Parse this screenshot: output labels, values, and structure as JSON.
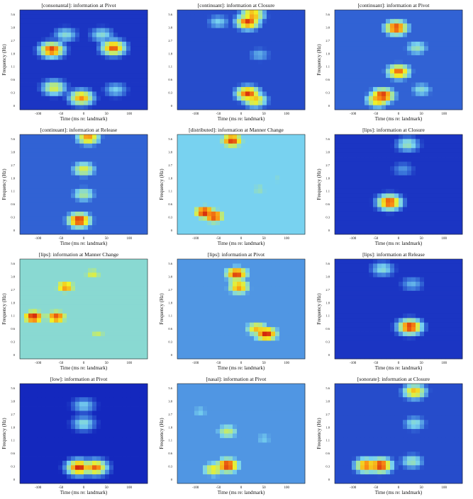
{
  "chart_data": [
    {
      "type": "heatmap",
      "title": "[consonantal]: information at Pivot",
      "xlabel": "Time (ms re: landmark)",
      "ylabel": "Frequency (Hz)",
      "xticks": [
        "-100",
        "-50",
        "0",
        "50",
        "100"
      ],
      "yticks": [
        "0",
        "0.3",
        "0.6",
        "1.1",
        "1.8",
        "2.7",
        "3.8",
        "5.6"
      ],
      "xlim": [
        -140,
        140
      ],
      "ylim": [
        0,
        6.5
      ],
      "background": 0.15,
      "blobs": [
        {
          "x": -70,
          "y": 0.6,
          "intensity": 0.95
        },
        {
          "x": 65,
          "y": 0.62,
          "intensity": 0.92
        },
        {
          "x": -65,
          "y": 0.22,
          "intensity": 0.7
        },
        {
          "x": -5,
          "y": 0.12,
          "intensity": 0.85
        },
        {
          "x": 70,
          "y": 0.2,
          "intensity": 0.45
        },
        {
          "x": -40,
          "y": 0.75,
          "intensity": 0.5
        },
        {
          "x": 40,
          "y": 0.75,
          "intensity": 0.5
        }
      ]
    },
    {
      "type": "heatmap",
      "title": "[continuant]: information at Closure",
      "xlabel": "Time (ms re: landmark)",
      "ylabel": "",
      "xticks": [
        "-100",
        "-50",
        "0",
        "50",
        "100"
      ],
      "yticks": [
        "0",
        "0.3",
        "0.6",
        "1.1",
        "1.8",
        "2.7",
        "3.8",
        "5.6"
      ],
      "xlim": [
        -140,
        140
      ],
      "ylim": [
        0,
        6.5
      ],
      "background": 0.2,
      "blobs": [
        {
          "x": 15,
          "y": 0.88,
          "intensity": 0.95
        },
        {
          "x": 25,
          "y": 0.95,
          "intensity": 0.85
        },
        {
          "x": 15,
          "y": 0.16,
          "intensity": 0.95
        },
        {
          "x": 30,
          "y": 0.1,
          "intensity": 0.8
        },
        {
          "x": -50,
          "y": 0.88,
          "intensity": 0.45
        },
        {
          "x": 40,
          "y": 0.55,
          "intensity": 0.4
        }
      ]
    },
    {
      "type": "heatmap",
      "title": "[continuant]: information at Pivot",
      "xlabel": "Time (ms re: landmark)",
      "ylabel": "Frequency (Hz)",
      "xticks": [
        "-100",
        "-50",
        "0",
        "50",
        "100"
      ],
      "yticks": [
        "0",
        "0.3",
        "0.6",
        "1.1",
        "1.8",
        "2.7",
        "3.8",
        "5.6"
      ],
      "xlim": [
        -140,
        140
      ],
      "ylim": [
        0,
        6.5
      ],
      "background": 0.25,
      "blobs": [
        {
          "x": -5,
          "y": 0.82,
          "intensity": 0.95
        },
        {
          "x": 0,
          "y": 0.38,
          "intensity": 0.9
        },
        {
          "x": -35,
          "y": 0.14,
          "intensity": 0.98
        },
        {
          "x": -45,
          "y": 0.1,
          "intensity": 0.85
        },
        {
          "x": 40,
          "y": 0.62,
          "intensity": 0.55
        },
        {
          "x": 50,
          "y": 0.2,
          "intensity": 0.5
        }
      ]
    },
    {
      "type": "heatmap",
      "title": "[continuant]: information at Release",
      "xlabel": "Time (ms re: landmark)",
      "ylabel": "Frequency (Hz)",
      "xticks": [
        "-100",
        "-50",
        "0",
        "50",
        "100"
      ],
      "yticks": [
        "0",
        "0.3",
        "0.6",
        "1.1",
        "1.8",
        "2.7",
        "3.8",
        "5.6"
      ],
      "xlim": [
        -140,
        140
      ],
      "ylim": [
        0,
        6.5
      ],
      "background": 0.25,
      "blobs": [
        {
          "x": -10,
          "y": 0.14,
          "intensity": 0.98
        },
        {
          "x": 0,
          "y": 0.65,
          "intensity": 0.7
        },
        {
          "x": 10,
          "y": 0.97,
          "intensity": 0.85
        },
        {
          "x": 0,
          "y": 0.4,
          "intensity": 0.6
        }
      ]
    },
    {
      "type": "heatmap",
      "title": "[distributed]: information at Manner Change",
      "xlabel": "Time (ms re: landmark)",
      "ylabel": "Frequency (Hz)",
      "xticks": [
        "-100",
        "-50",
        "0",
        "50",
        "100"
      ],
      "yticks": [
        "0",
        "0.3",
        "0.6",
        "1.1",
        "1.8",
        "2.7",
        "3.8",
        "5.6"
      ],
      "xlim": [
        -140,
        140
      ],
      "ylim": [
        0,
        6.5
      ],
      "background": 0.45,
      "blobs": [
        {
          "x": -80,
          "y": 0.22,
          "intensity": 0.98
        },
        {
          "x": -60,
          "y": 0.18,
          "intensity": 0.95
        },
        {
          "x": -20,
          "y": 0.94,
          "intensity": 0.95
        },
        {
          "x": 40,
          "y": 0.45,
          "intensity": 0.55
        },
        {
          "x": 80,
          "y": 0.55,
          "intensity": 0.5
        }
      ]
    },
    {
      "type": "heatmap",
      "title": "[lips]: information at Closure",
      "xlabel": "Time (ms re: landmark)",
      "ylabel": "Frequency (Hz)",
      "xticks": [
        "-100",
        "-50",
        "0",
        "50",
        "100"
      ],
      "yticks": [
        "0",
        "0.3",
        "0.6",
        "1.1",
        "1.8",
        "2.7",
        "3.8",
        "5.6"
      ],
      "xlim": [
        -140,
        140
      ],
      "ylim": [
        0,
        6.5
      ],
      "background": 0.15,
      "blobs": [
        {
          "x": -20,
          "y": 0.32,
          "intensity": 0.95
        },
        {
          "x": 20,
          "y": 0.9,
          "intensity": 0.55
        },
        {
          "x": 10,
          "y": 0.65,
          "intensity": 0.35
        }
      ]
    },
    {
      "type": "heatmap",
      "title": "[lips]: information at Manner Change",
      "xlabel": "Time (ms re: landmark)",
      "ylabel": "Frequency (Hz)",
      "xticks": [
        "-100",
        "-50",
        "0",
        "50",
        "100"
      ],
      "yticks": [
        "0",
        "0.3",
        "0.6",
        "1.1",
        "1.8",
        "2.7",
        "3.8",
        "5.6"
      ],
      "xlim": [
        -140,
        140
      ],
      "ylim": [
        0,
        6.5
      ],
      "background": 0.5,
      "blobs": [
        {
          "x": -110,
          "y": 0.42,
          "intensity": 0.98
        },
        {
          "x": -60,
          "y": 0.42,
          "intensity": 0.92
        },
        {
          "x": -40,
          "y": 0.72,
          "intensity": 0.85
        },
        {
          "x": 20,
          "y": 0.85,
          "intensity": 0.7
        },
        {
          "x": 30,
          "y": 0.25,
          "intensity": 0.65
        }
      ]
    },
    {
      "type": "heatmap",
      "title": "[lips]: information at Pivot",
      "xlabel": "Time (ms re: landmark)",
      "ylabel": "Frequency (Hz)",
      "xticks": [
        "-100",
        "-50",
        "0",
        "50",
        "100"
      ],
      "yticks": [
        "0",
        "0.3",
        "0.6",
        "1.1",
        "1.8",
        "2.7",
        "3.8",
        "5.6"
      ],
      "xlim": [
        -140,
        140
      ],
      "ylim": [
        0,
        6.5
      ],
      "background": 0.35,
      "blobs": [
        {
          "x": -10,
          "y": 0.85,
          "intensity": 0.95
        },
        {
          "x": -5,
          "y": 0.72,
          "intensity": 0.85
        },
        {
          "x": 55,
          "y": 0.25,
          "intensity": 0.98
        },
        {
          "x": 35,
          "y": 0.3,
          "intensity": 0.8
        }
      ]
    },
    {
      "type": "heatmap",
      "title": "[lips]: information at Release",
      "xlabel": "Time (ms re: landmark)",
      "ylabel": "Frequency (Hz)",
      "xticks": [
        "-100",
        "-50",
        "0",
        "50",
        "100"
      ],
      "yticks": [
        "0",
        "0.3",
        "0.6",
        "1.1",
        "1.8",
        "2.7",
        "3.8",
        "5.6"
      ],
      "xlim": [
        -140,
        140
      ],
      "ylim": [
        0,
        6.5
      ],
      "background": 0.15,
      "blobs": [
        {
          "x": 25,
          "y": 0.32,
          "intensity": 0.98
        },
        {
          "x": -35,
          "y": 0.9,
          "intensity": 0.5
        },
        {
          "x": 30,
          "y": 0.75,
          "intensity": 0.4
        }
      ]
    },
    {
      "type": "heatmap",
      "title": "[low]: information at Pivot",
      "xlabel": "Time (ms re: landmark)",
      "ylabel": "Frequency (Hz)",
      "xticks": [
        "-100",
        "-50",
        "0",
        "50",
        "100"
      ],
      "yticks": [
        "0",
        "0.3",
        "0.6",
        "1.1",
        "1.8",
        "2.7",
        "3.8",
        "5.6"
      ],
      "xlim": [
        -140,
        140
      ],
      "ylim": [
        0,
        6.5
      ],
      "background": 0.12,
      "blobs": [
        {
          "x": -10,
          "y": 0.16,
          "intensity": 0.98
        },
        {
          "x": 25,
          "y": 0.16,
          "intensity": 0.9
        },
        {
          "x": 0,
          "y": 0.6,
          "intensity": 0.5
        },
        {
          "x": 0,
          "y": 0.78,
          "intensity": 0.45
        }
      ]
    },
    {
      "type": "heatmap",
      "title": "[nasal]: information at Pivot",
      "xlabel": "Time (ms re: landmark)",
      "ylabel": "Frequency (Hz)",
      "xticks": [
        "-100",
        "-50",
        "0",
        "50",
        "100"
      ],
      "yticks": [
        "0",
        "0.3",
        "0.6",
        "1.1",
        "1.8",
        "2.7",
        "3.8",
        "5.6"
      ],
      "xlim": [
        -140,
        140
      ],
      "ylim": [
        0,
        6.5
      ],
      "background": 0.35,
      "blobs": [
        {
          "x": -30,
          "y": 0.18,
          "intensity": 0.98
        },
        {
          "x": -60,
          "y": 0.14,
          "intensity": 0.75
        },
        {
          "x": -30,
          "y": 0.52,
          "intensity": 0.65
        },
        {
          "x": 50,
          "y": 0.45,
          "intensity": 0.45
        },
        {
          "x": -90,
          "y": 0.72,
          "intensity": 0.45
        }
      ]
    },
    {
      "type": "heatmap",
      "title": "[sonorate]: information at Closure",
      "xlabel": "Time (ms re: landmark)",
      "ylabel": "Frequency (Hz)",
      "xticks": [
        "-100",
        "-50",
        "0",
        "50",
        "100"
      ],
      "yticks": [
        "0",
        "0.3",
        "0.6",
        "1.1",
        "1.8",
        "2.7",
        "3.8",
        "5.6"
      ],
      "xlim": [
        -140,
        140
      ],
      "ylim": [
        0,
        6.5
      ],
      "background": 0.2,
      "blobs": [
        {
          "x": -40,
          "y": 0.18,
          "intensity": 0.98
        },
        {
          "x": -70,
          "y": 0.18,
          "intensity": 0.9
        },
        {
          "x": 35,
          "y": 0.92,
          "intensity": 0.8
        },
        {
          "x": 35,
          "y": 0.6,
          "intensity": 0.5
        },
        {
          "x": 30,
          "y": 0.22,
          "intensity": 0.55
        }
      ]
    }
  ]
}
